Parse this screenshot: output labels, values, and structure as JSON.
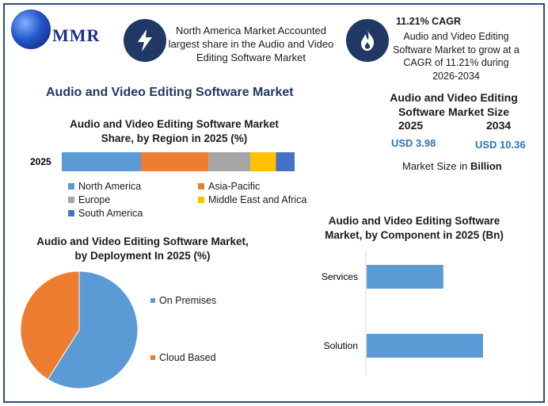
{
  "logo": {
    "text": "MMR"
  },
  "highlight_region": {
    "text": "North America Market Accounted largest share in the Audio and Video Editing Software Market"
  },
  "highlight_cagr": {
    "title": "11.21% CAGR",
    "text": "Audio and Video Editing Software Market to grow at a CAGR of 11.21% during 2026-2034"
  },
  "icons": {
    "bolt": "lightning-icon",
    "fire": "flame-icon",
    "logo": "globe-icon"
  },
  "main_title": "Audio and Video Editing Software Market",
  "market_size": {
    "title": "Audio and Video Editing Software Market Size",
    "year_start": "2025",
    "year_end": "2034",
    "value_start": "USD 3.98",
    "value_end": "USD 10.36",
    "note_prefix": "Market Size in",
    "note_unit": "Billion"
  },
  "chart_data": [
    {
      "type": "bar",
      "orientation": "horizontal-stacked",
      "title": "Audio and Video Editing Software Market Share, by Region in 2025 (%)",
      "categories": [
        "2025"
      ],
      "series": [
        {
          "name": "North America",
          "values": [
            34
          ],
          "color": "#5b9bd5"
        },
        {
          "name": "Asia-Pacific",
          "values": [
            29
          ],
          "color": "#ed7d31"
        },
        {
          "name": "Europe",
          "values": [
            18
          ],
          "color": "#a5a5a5"
        },
        {
          "name": "Middle East and Africa",
          "values": [
            11
          ],
          "color": "#ffc000"
        },
        {
          "name": "South America",
          "values": [
            8
          ],
          "color": "#4472c4"
        }
      ],
      "xlim": [
        0,
        100
      ],
      "legend": "bottom"
    },
    {
      "type": "pie",
      "title": "Audio and Video Editing Software Market, by Deployment In 2025 (%)",
      "labels": [
        "On Premises",
        "Cloud Based"
      ],
      "values": [
        59,
        41
      ],
      "colors": [
        "#5b9bd5",
        "#ed7d31"
      ],
      "legend": "right"
    },
    {
      "type": "bar",
      "orientation": "horizontal",
      "title": "Audio and Video Editing Software Market, by Component in 2025 (Bn)",
      "categories": [
        "Services",
        "Solution"
      ],
      "values": [
        1.58,
        2.4
      ],
      "color": "#5b9bd5",
      "xlim": [
        0,
        3.2
      ]
    }
  ]
}
